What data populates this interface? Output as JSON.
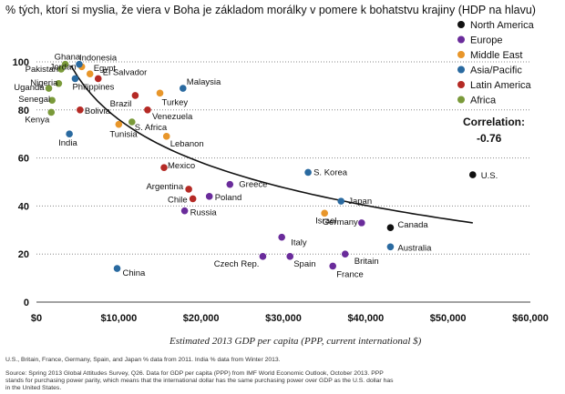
{
  "chart_data": {
    "type": "scatter",
    "title": "% tých, ktorí si myslia, že viera v Boha je základom morálky v pomere k bohatstvu krajiny (HDP na hlavu)",
    "xlabel": "Estimated 2013 GDP per capita (PPP, current international $)",
    "ylabel": "",
    "xlim": [
      0,
      60000
    ],
    "ylim": [
      0,
      100
    ],
    "x_ticks": [
      "$0",
      "$10,000",
      "$20,000",
      "$30,000",
      "$40,000",
      "$50,000",
      "$60,000"
    ],
    "y_ticks": [
      "0",
      "20",
      "40",
      "60",
      "80",
      "100"
    ],
    "grid": "horizontal dotted",
    "legend_position": "top-right",
    "correlation_label": "Correlation:",
    "correlation_value": "-0.76",
    "trendline": "logarithmic fit",
    "series": [
      {
        "name": "North America",
        "color": "#111111",
        "points": [
          {
            "label": "U.S.",
            "x": 53000,
            "y": 53
          },
          {
            "label": "Canada",
            "x": 43000,
            "y": 31
          }
        ]
      },
      {
        "name": "Europe",
        "color": "#6a2c9b",
        "points": [
          {
            "label": "Greece",
            "x": 23500,
            "y": 49
          },
          {
            "label": "Poland",
            "x": 21000,
            "y": 44
          },
          {
            "label": "Russia",
            "x": 18000,
            "y": 38
          },
          {
            "label": "Germany",
            "x": 39500,
            "y": 33
          },
          {
            "label": "Italy",
            "x": 29800,
            "y": 27
          },
          {
            "label": "Czech Rep.",
            "x": 27500,
            "y": 19
          },
          {
            "label": "Spain",
            "x": 30800,
            "y": 19
          },
          {
            "label": "Britain",
            "x": 37500,
            "y": 20
          },
          {
            "label": "France",
            "x": 36000,
            "y": 15
          }
        ]
      },
      {
        "name": "Middle East",
        "color": "#e8962a",
        "points": [
          {
            "label": "Jordan",
            "x": 5500,
            "y": 98
          },
          {
            "label": "Egypt",
            "x": 6500,
            "y": 95
          },
          {
            "label": "Turkey",
            "x": 15000,
            "y": 87
          },
          {
            "label": "Tunisia",
            "x": 10000,
            "y": 74
          },
          {
            "label": "Lebanon",
            "x": 15800,
            "y": 69
          },
          {
            "label": "Israel",
            "x": 35000,
            "y": 37
          }
        ]
      },
      {
        "name": "Asia/Pacific",
        "color": "#2a6aa0",
        "points": [
          {
            "label": "Indonesia",
            "x": 5200,
            "y": 99
          },
          {
            "label": "Philippines",
            "x": 4700,
            "y": 93
          },
          {
            "label": "Malaysia",
            "x": 17800,
            "y": 89
          },
          {
            "label": "India",
            "x": 4000,
            "y": 70
          },
          {
            "label": "S. Korea",
            "x": 33000,
            "y": 54
          },
          {
            "label": "Japan",
            "x": 37000,
            "y": 42
          },
          {
            "label": "Australia",
            "x": 43000,
            "y": 23
          },
          {
            "label": "China",
            "x": 9800,
            "y": 14
          }
        ]
      },
      {
        "name": "Latin America",
        "color": "#b52a25",
        "points": [
          {
            "label": "El Salvador",
            "x": 7500,
            "y": 93
          },
          {
            "label": "Brazil",
            "x": 12000,
            "y": 86
          },
          {
            "label": "Bolivia",
            "x": 5300,
            "y": 80
          },
          {
            "label": "Venezuela",
            "x": 13500,
            "y": 80
          },
          {
            "label": "Mexico",
            "x": 15500,
            "y": 56
          },
          {
            "label": "Argentina",
            "x": 18500,
            "y": 47
          },
          {
            "label": "Chile",
            "x": 19000,
            "y": 43
          }
        ]
      },
      {
        "name": "Africa",
        "color": "#7a9a3a",
        "points": [
          {
            "label": "Ghana",
            "x": 3500,
            "y": 99
          },
          {
            "label": "Pakistan",
            "x": 3000,
            "y": 97
          },
          {
            "label": "Nigeria",
            "x": 2700,
            "y": 91
          },
          {
            "label": "Uganda",
            "x": 1500,
            "y": 89
          },
          {
            "label": "Senegal",
            "x": 1900,
            "y": 84
          },
          {
            "label": "Kenya",
            "x": 1800,
            "y": 79
          },
          {
            "label": "S. Africa",
            "x": 11600,
            "y": 75
          }
        ]
      }
    ]
  },
  "footnote_1": "U.S., Britain, France, Germany, Spain, and Japan % data from 2011. India % data from Winter 2013.",
  "footnote_2": "Source: Spring 2013 Global Attitudes Survey, Q26.  Data for GDP per capita (PPP) from IMF World Economic Outlook, October 2013. PPP",
  "footnote_3": "stands for purchasing power parity, which means that the international dollar has the same purchasing power over GDP as the U.S. dollar has",
  "footnote_4": "in the United States."
}
